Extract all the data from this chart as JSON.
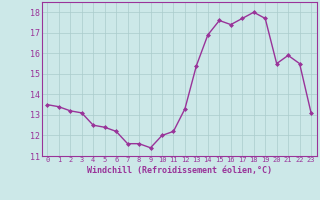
{
  "x": [
    0,
    1,
    2,
    3,
    4,
    5,
    6,
    7,
    8,
    9,
    10,
    11,
    12,
    13,
    14,
    15,
    16,
    17,
    18,
    19,
    20,
    21,
    22,
    23
  ],
  "y": [
    13.5,
    13.4,
    13.2,
    13.1,
    12.5,
    12.4,
    12.2,
    11.6,
    11.6,
    11.4,
    12.0,
    12.2,
    13.3,
    15.4,
    16.9,
    17.6,
    17.4,
    17.7,
    18.0,
    17.7,
    15.5,
    15.9,
    15.5,
    13.1
  ],
  "line_color": "#993399",
  "marker": "D",
  "marker_size": 2,
  "bg_color": "#cce8e8",
  "grid_color": "#aacccc",
  "xlabel": "Windchill (Refroidissement éolien,°C)",
  "xlabel_color": "#993399",
  "tick_color": "#993399",
  "spine_color": "#993399",
  "ylim": [
    11,
    18.5
  ],
  "xlim": [
    -0.5,
    23.5
  ],
  "yticks": [
    11,
    12,
    13,
    14,
    15,
    16,
    17,
    18
  ],
  "xticks": [
    0,
    1,
    2,
    3,
    4,
    5,
    6,
    7,
    8,
    9,
    10,
    11,
    12,
    13,
    14,
    15,
    16,
    17,
    18,
    19,
    20,
    21,
    22,
    23
  ],
  "tick_fontsize": 5,
  "xlabel_fontsize": 6,
  "linewidth": 1.0
}
